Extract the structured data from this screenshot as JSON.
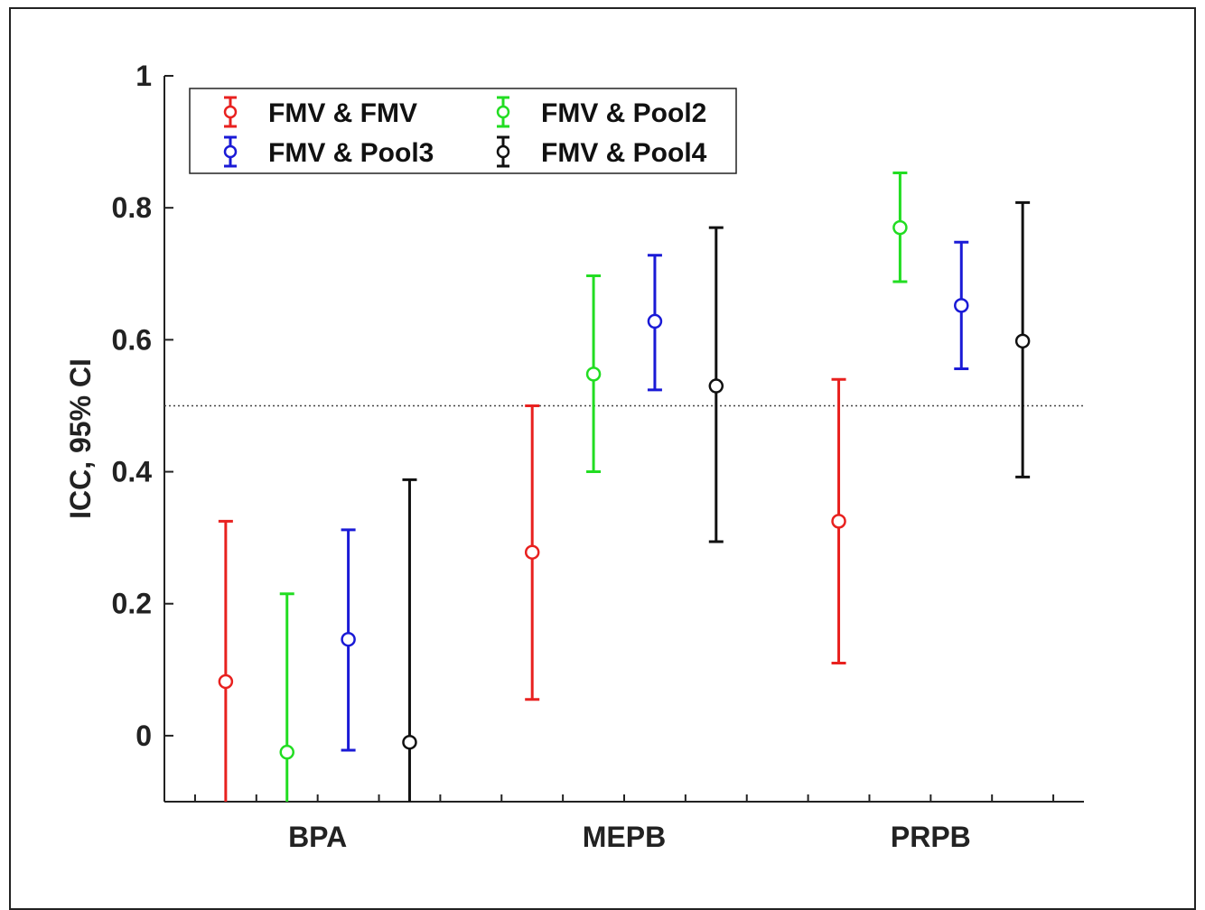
{
  "chart_data": {
    "type": "errorbar",
    "title": "",
    "xlabel": "",
    "ylabel": "ICC, 95% CI",
    "ylim": [
      -0.1,
      1.0
    ],
    "yticks": [
      0,
      0.2,
      0.4,
      0.6,
      0.8,
      1
    ],
    "ytick_labels": [
      "0",
      "0.2",
      "0.4",
      "0.6",
      "0.8",
      "1"
    ],
    "categories": [
      "BPA",
      "MEPB",
      "PRPB"
    ],
    "reference_line": 0.5,
    "grid": false,
    "legend_position": "top-left",
    "series": [
      {
        "name": "FMV & FMV",
        "color": "#e8211f",
        "values": [
          0.082,
          0.278,
          0.325
        ],
        "lower": [
          -0.1,
          0.055,
          0.11
        ],
        "upper": [
          0.325,
          0.5,
          0.54
        ]
      },
      {
        "name": "FMV & Pool2",
        "color": "#22dd22",
        "values": [
          -0.025,
          0.548,
          0.77
        ],
        "lower": [
          -0.1,
          0.4,
          0.688
        ],
        "upper": [
          0.215,
          0.697,
          0.853
        ]
      },
      {
        "name": "FMV & Pool3",
        "color": "#1a1ad6",
        "values": [
          0.146,
          0.628,
          0.652
        ],
        "lower": [
          -0.022,
          0.524,
          0.556
        ],
        "upper": [
          0.312,
          0.728,
          0.748
        ]
      },
      {
        "name": "FMV & Pool4",
        "color": "#111111",
        "values": [
          -0.01,
          0.53,
          0.598
        ],
        "lower": [
          -0.1,
          0.294,
          0.392
        ],
        "upper": [
          0.388,
          0.77,
          0.808
        ]
      }
    ]
  }
}
